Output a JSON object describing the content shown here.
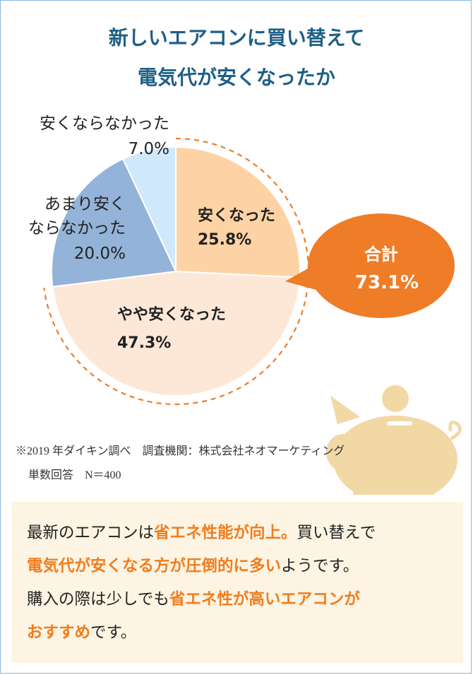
{
  "title": {
    "line1": "新しいエアコンに買い替えて",
    "line2": "電気代が安くなったか"
  },
  "chart_data": {
    "type": "pie",
    "slices": [
      {
        "label": "安くなった",
        "value": 25.8,
        "value_text": "25.8%",
        "color": "#fdd3a6",
        "group": "yes"
      },
      {
        "label": "やや安くなった",
        "value": 47.3,
        "value_text": "47.3%",
        "color": "#fde8d8",
        "group": "yes"
      },
      {
        "label": "あまり安くならなかった",
        "value": 20.0,
        "value_text": "20.0%",
        "color": "#93b3d8",
        "group": "no"
      },
      {
        "label": "安くならなかった",
        "value": 7.0,
        "value_text": "7.0%",
        "color": "#cfe8fb",
        "group": "no"
      }
    ],
    "total_callout": {
      "label": "合計",
      "value": 73.1,
      "value_text": "73.1%",
      "color": "#ef7c27"
    }
  },
  "labels": {
    "slice0_line1": "安くなった",
    "slice0_value": "25.8%",
    "slice1_line1": "やや安くなった",
    "slice1_value": "47.3%",
    "slice2_line1": "あまり安く",
    "slice2_line2": "ならなかった",
    "slice2_value": "20.0%",
    "slice3_line1": "安くならなかった",
    "slice3_value": "7.0%",
    "total_line1": "合計",
    "total_value": "73.1%"
  },
  "notes": {
    "line1": "※2019 年ダイキン調べ　調査機関：株式会社ネオマーケティング",
    "line2": "単数回答　N＝400"
  },
  "callout": {
    "p1": "最新のエアコンは",
    "h1": "省エネ性能が向上。",
    "p2": "買い替えで",
    "h2": "電気代が安くなる方が圧倒的に多い",
    "p3": "ようです。",
    "p4": "購入の際は少しでも",
    "h3": "省エネ性が高いエアコンが",
    "h4": "おすすめ",
    "p5": "です。"
  },
  "colors": {
    "title": "#1e5f86",
    "accent": "#ef7c27",
    "highlight_text": "#f07d1e",
    "callout_bg": "#fdf4e3",
    "pig": "#f2d8a5",
    "frame": "#8bb8de"
  },
  "icons": [
    "piggy-bank-icon",
    "coin-icon"
  ]
}
